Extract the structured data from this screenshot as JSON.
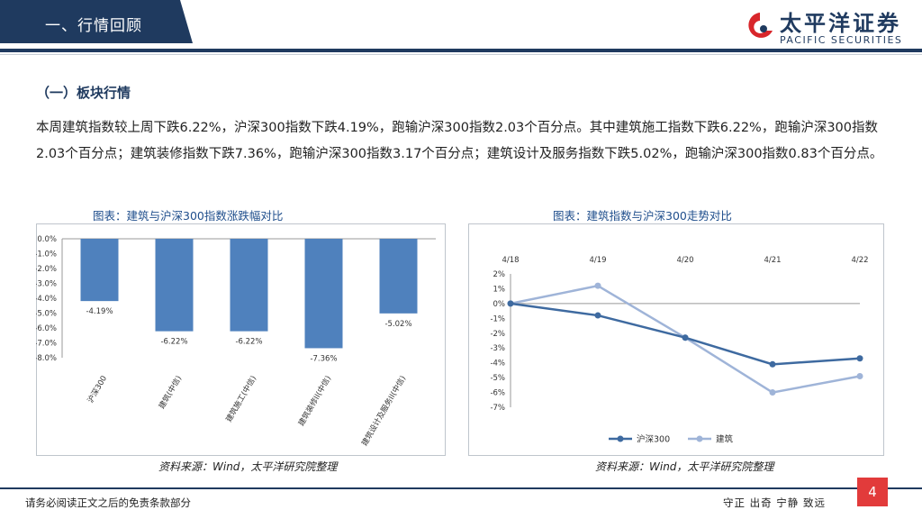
{
  "header": {
    "title": "一、行情回顾"
  },
  "logo": {
    "name": "太平洋证券",
    "english": "PACIFIC SECURITIES"
  },
  "section": {
    "title": "（一）板块行情"
  },
  "body_text": "本周建筑指数较上周下跌6.22%，沪深300指数下跌4.19%，跑输沪深300指数2.03个百分点。其中建筑施工指数下跌6.22%，跑输沪深300指数2.03个百分点；建筑装修指数下跌7.36%，跑输沪深300指数3.17个百分点；建筑设计及服务指数下跌5.02%，跑输沪深300指数0.83个百分点。",
  "charts": {
    "left": {
      "title": "图表：建筑与沪深300指数涨跌幅对比",
      "source": "资料来源：Wind，太平洋研究院整理"
    },
    "right": {
      "title": "图表：建筑指数与沪深300走势对比",
      "source": "资料来源：Wind，太平洋研究院整理"
    }
  },
  "chart_data": [
    {
      "type": "bar",
      "title": "图表：建筑与沪深300指数涨跌幅对比",
      "categories": [
        "沪深300",
        "建筑(中信)",
        "建筑施工(中信)",
        "建筑装修II(中信)",
        "建筑设计及服务II(中信)"
      ],
      "values": [
        -4.19,
        -6.22,
        -6.22,
        -7.36,
        -5.02
      ],
      "data_labels": [
        "-4.19%",
        "-6.22%",
        "-6.22%",
        "-7.36%",
        "-5.02%"
      ],
      "ylim": [
        -8.0,
        0.0
      ],
      "yticks": [
        "0.0%",
        "-1.0%",
        "-2.0%",
        "-3.0%",
        "-4.0%",
        "-5.0%",
        "-6.0%",
        "-7.0%",
        "-8.0%"
      ],
      "color": "#4f81bd",
      "grid": false
    },
    {
      "type": "line",
      "title": "图表：建筑指数与沪深300走势对比",
      "x": [
        "4/18",
        "4/19",
        "4/20",
        "4/21",
        "4/22"
      ],
      "series": [
        {
          "name": "沪深300",
          "values": [
            0.0,
            -0.8,
            -2.3,
            -4.1,
            -3.7
          ],
          "color": "#3e6aa0"
        },
        {
          "name": "建筑",
          "values": [
            0.0,
            1.2,
            -2.3,
            -6.0,
            -4.9
          ],
          "color": "#9fb4d8"
        }
      ],
      "ylim": [
        -7,
        2
      ],
      "yticks": [
        "2%",
        "1%",
        "0%",
        "-1%",
        "-2%",
        "-3%",
        "-4%",
        "-5%",
        "-6%",
        "-7%"
      ],
      "xaxis_position": "top",
      "legend": "bottom-center",
      "grid": false
    }
  ],
  "footer": {
    "disclaimer": "请务必阅读正文之后的免责条款部分",
    "slogan": "守正 出奇 宁静 致远",
    "page": "4"
  }
}
